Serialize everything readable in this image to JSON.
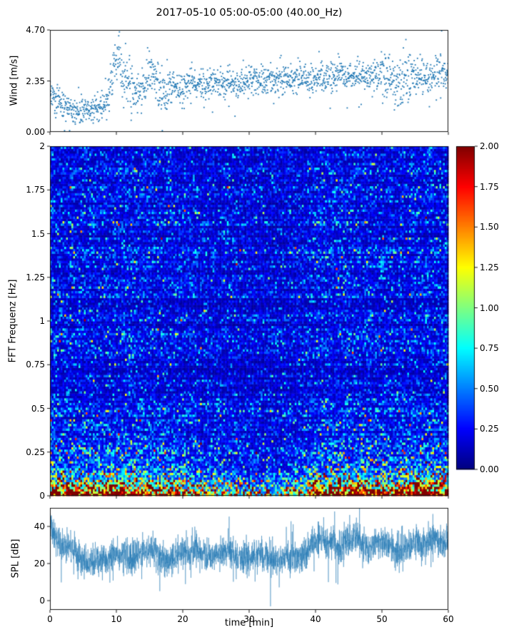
{
  "figure": {
    "title": "2017-05-10 05:00-05:00 (40.00_Hz)",
    "background": "#ffffff",
    "axis_color": "#000000"
  },
  "chart_data": [
    {
      "id": "wind",
      "type": "scatter",
      "ylabel": "Wind [m/s]",
      "ylim": [
        0,
        4.7
      ],
      "yticks": [
        {
          "v": 0,
          "label": "0.00"
        },
        {
          "v": 2.35,
          "label": "2.35"
        },
        {
          "v": 4.7,
          "label": "4.70"
        }
      ],
      "xlim": [
        0,
        60
      ],
      "xticks": [
        0,
        10,
        20,
        30,
        40,
        50,
        60
      ],
      "marker_color": "#1f77b4",
      "n_points": 1750,
      "seed": 20170510,
      "noise_sd": 0.34,
      "envelope": {
        "t": [
          0,
          2,
          4,
          5,
          6,
          8,
          9,
          9.7,
          10.4,
          11,
          12,
          13,
          14,
          15,
          16,
          17,
          18,
          20,
          22,
          25,
          28,
          30,
          33,
          36,
          39,
          42,
          45,
          48,
          50,
          52,
          54,
          56,
          58,
          60
        ],
        "v": [
          1.7,
          1.3,
          1.0,
          0.85,
          1.0,
          1.2,
          1.8,
          3.0,
          3.2,
          2.4,
          2.2,
          1.7,
          2.1,
          2.7,
          2.4,
          1.9,
          2.0,
          2.0,
          2.3,
          2.3,
          2.2,
          2.4,
          2.4,
          2.5,
          2.4,
          2.5,
          2.6,
          2.6,
          2.6,
          2.3,
          2.5,
          2.5,
          2.7,
          2.9
        ]
      },
      "spread_boost": {
        "t": [
          0,
          8,
          9,
          12,
          14,
          18,
          19,
          49,
          51,
          54,
          55,
          60
        ],
        "v": [
          1,
          1,
          1.8,
          1.8,
          1.6,
          1.6,
          1,
          1,
          1.9,
          1.9,
          1,
          1
        ]
      }
    },
    {
      "id": "spectrogram",
      "type": "heatmap",
      "ylabel": "FFT Frequenz [Hz]",
      "ylim": [
        0,
        2
      ],
      "yticks": [
        {
          "v": 0,
          "label": "0"
        },
        {
          "v": 0.25,
          "label": "0.25"
        },
        {
          "v": 0.5,
          "label": "0.5"
        },
        {
          "v": 0.75,
          "label": "0.75"
        },
        {
          "v": 1,
          "label": "1"
        },
        {
          "v": 1.25,
          "label": "1.25"
        },
        {
          "v": 1.5,
          "label": "1.5"
        },
        {
          "v": 1.75,
          "label": "1.75"
        },
        {
          "v": 2,
          "label": "2"
        }
      ],
      "xlim": [
        0,
        60
      ],
      "xticks": [
        0,
        10,
        20,
        30,
        40,
        50,
        60
      ],
      "colormap": "jet",
      "vmin": 0,
      "vmax": 2,
      "colorbar_ticks": [
        {
          "v": 2,
          "label": "2.00"
        },
        {
          "v": 1.75,
          "label": "1.75"
        },
        {
          "v": 1.5,
          "label": "1.50"
        },
        {
          "v": 1.25,
          "label": "1.25"
        },
        {
          "v": 1,
          "label": "1.00"
        },
        {
          "v": 0.75,
          "label": "0.75"
        },
        {
          "v": 0.5,
          "label": "0.50"
        },
        {
          "v": 0.25,
          "label": "0.25"
        },
        {
          "v": 0,
          "label": "0.00"
        }
      ],
      "grid": {
        "time_bins": 223,
        "freq_bins": 150
      },
      "seed": 40,
      "base_level": 0.13,
      "row_variation": 0.16,
      "lowfreq_boost": [
        [
          0.045,
          2.3
        ],
        [
          0.13,
          0.95
        ]
      ],
      "time_mod": {
        "t": [
          0,
          3,
          6,
          10,
          14,
          18,
          22,
          26,
          30,
          34,
          38,
          40,
          44,
          48,
          52,
          56,
          60
        ],
        "v": [
          1.0,
          0.9,
          0.85,
          1.0,
          0.9,
          0.8,
          0.6,
          0.45,
          0.35,
          0.35,
          0.5,
          0.9,
          1.0,
          0.9,
          0.8,
          1.0,
          1.1
        ]
      }
    },
    {
      "id": "spl",
      "type": "line",
      "ylabel": "SPL [dB]",
      "xlabel": "time [min]",
      "ylim": [
        -5,
        50
      ],
      "yticks": [
        {
          "v": 0,
          "label": "0"
        },
        {
          "v": 20,
          "label": "20"
        },
        {
          "v": 40,
          "label": "40"
        }
      ],
      "xlim": [
        0,
        60
      ],
      "xticks": [
        {
          "v": 0,
          "label": "0"
        },
        {
          "v": 10,
          "label": "10"
        },
        {
          "v": 20,
          "label": "20"
        },
        {
          "v": 30,
          "label": "30"
        },
        {
          "v": 40,
          "label": "40"
        },
        {
          "v": 50,
          "label": "50"
        },
        {
          "v": 60,
          "label": "60"
        }
      ],
      "line_color": "#1f77b4",
      "n_points": 3200,
      "seed": 99,
      "noise_sd": 4.3,
      "envelope": {
        "t": [
          0,
          0.5,
          1,
          2,
          3,
          4,
          5,
          6,
          8,
          9,
          10,
          12,
          13,
          14,
          15,
          17,
          18,
          20,
          21,
          22,
          24,
          25,
          27,
          28,
          30,
          32,
          34,
          36,
          38,
          39,
          40,
          41,
          43,
          44,
          45,
          46,
          48,
          49,
          50,
          52,
          53,
          54,
          55,
          56,
          58,
          59,
          60
        ],
        "v": [
          42,
          38,
          33,
          30,
          28,
          25,
          22,
          20,
          21,
          23,
          26,
          23,
          22,
          26,
          28,
          23,
          22,
          26,
          25,
          28,
          24,
          25,
          27,
          24,
          24,
          24,
          23,
          24,
          23,
          28,
          32,
          34,
          30,
          29,
          33,
          34,
          28,
          31,
          33,
          26,
          27,
          30,
          33,
          29,
          34,
          31,
          32
        ]
      }
    }
  ]
}
